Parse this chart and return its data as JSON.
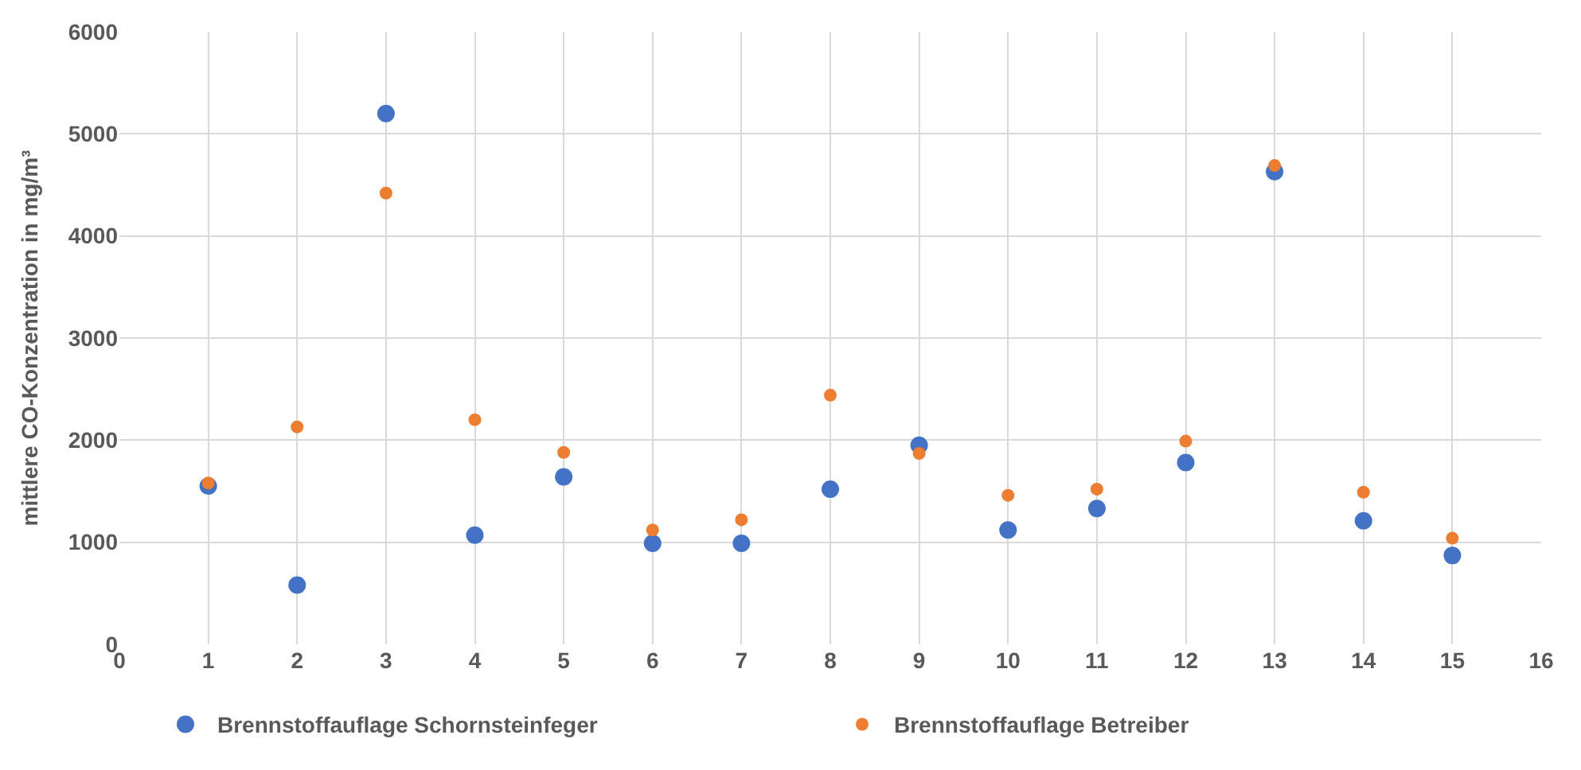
{
  "chart_data": {
    "type": "scatter",
    "ylabel": "mittlere CO-Konzentration in mg/m³",
    "x": [
      1,
      2,
      3,
      4,
      5,
      6,
      7,
      8,
      9,
      10,
      11,
      12,
      13,
      14,
      15
    ],
    "series": [
      {
        "name": "Brennstoffauflage Schornsteinfeger",
        "color": "#4472c4",
        "values": [
          1550,
          580,
          5200,
          1070,
          1640,
          990,
          990,
          1520,
          1950,
          1120,
          1330,
          1780,
          4630,
          1210,
          870
        ]
      },
      {
        "name": "Brennstoffauflage Betreiber",
        "color": "#ed7d31",
        "values": [
          1580,
          2130,
          4420,
          2200,
          1880,
          1120,
          1220,
          2440,
          1870,
          1460,
          1520,
          1990,
          4690,
          1490,
          1040
        ]
      }
    ],
    "xlim": [
      0,
      16
    ],
    "xticks": [
      0,
      1,
      2,
      3,
      4,
      5,
      6,
      7,
      8,
      9,
      10,
      11,
      12,
      13,
      14,
      15,
      16
    ],
    "ylim": [
      0,
      6000
    ],
    "yticks": [
      0,
      1000,
      2000,
      3000,
      4000,
      5000,
      6000
    ],
    "grid": true,
    "legend": "bottom",
    "marker": "circle"
  }
}
